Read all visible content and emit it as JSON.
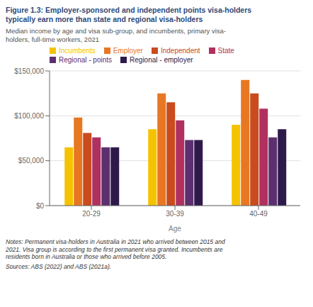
{
  "chart_data": {
    "type": "bar",
    "title": "Figure 1.3: Employer-sponsored and independent points visa-holders\ntypically earn more than state and regional visa-holders",
    "subtitle": "Median income by age and visa sub-group, and incumbents, primary visa-\nholders, full-time workers, 2021",
    "annotations": [
      "Notes: Permanent visa-holders in Australia in 2021 who arrived between 2015 and\n2021. Visa group is according to the first permanent visa granted. Incumbents are\nresidents born in Australia or those who arrived before 2005.",
      "Sources: ABS (2022) and ABS (2021a)."
    ],
    "x_label": "Age",
    "categories": [
      "20-29",
      "30-39",
      "40-49"
    ],
    "series": [
      {
        "name": "Incumbents",
        "color": "#F5C200",
        "values": [
          65000,
          85000,
          90000
        ]
      },
      {
        "name": "Employer",
        "color": "#E87722",
        "values": [
          98000,
          125000,
          140000
        ]
      },
      {
        "name": "Independent",
        "color": "#C94B1E",
        "values": [
          81000,
          115000,
          125000
        ]
      },
      {
        "name": "State",
        "color": "#B03060",
        "values": [
          76000,
          95000,
          108000
        ]
      },
      {
        "name": "Regional - points",
        "color": "#5C3070",
        "values": [
          65000,
          73000,
          76000
        ]
      },
      {
        "name": "Regional - employer",
        "color": "#2E1A4A",
        "values": [
          65000,
          73000,
          85000
        ]
      }
    ],
    "ylim": [
      0,
      150000
    ],
    "yticks": [
      {
        "value": 0,
        "label": "$0"
      },
      {
        "value": 50000,
        "label": "$50,000"
      },
      {
        "value": 100000,
        "label": "$100,000"
      },
      {
        "value": 150000,
        "label": "$150,000"
      }
    ],
    "grid": true,
    "legend": "upper left"
  }
}
